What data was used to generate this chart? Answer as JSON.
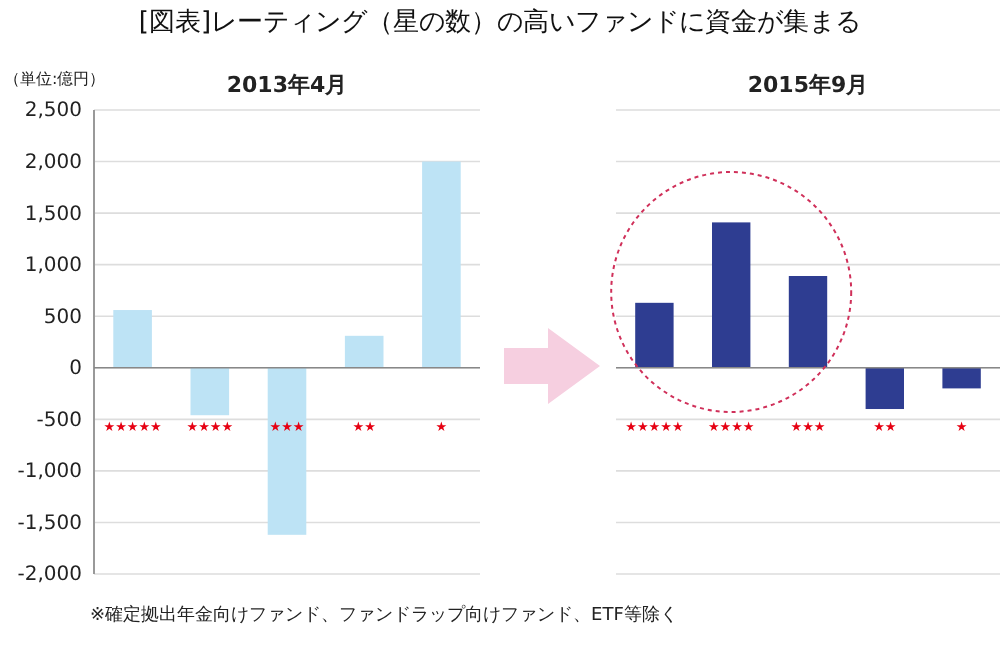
{
  "chart_data": [
    {
      "type": "bar",
      "title": "[図表]レーティング（星の数）の高いファンドに資金が集まる",
      "subtitle": "2013年4月",
      "ylabel": "（単位:億円）",
      "categories": [
        "★★★★★",
        "★★★★",
        "★★★",
        "★★",
        "★"
      ],
      "values": [
        560,
        -460,
        -1620,
        310,
        2000
      ],
      "color": "#bde3f5",
      "ylim": [
        -2000,
        2500
      ],
      "yticks": [
        {
          "value": -2000,
          "label": "-2,000"
        },
        {
          "value": -1500,
          "label": "-1,500"
        },
        {
          "value": -1000,
          "label": "-1,000"
        },
        {
          "value": -500,
          "label": "-500"
        },
        {
          "value": 0,
          "label": "0"
        },
        {
          "value": 500,
          "label": "500"
        },
        {
          "value": 1000,
          "label": "1,000"
        },
        {
          "value": 1500,
          "label": "1,500"
        },
        {
          "value": 2000,
          "label": "2,000"
        },
        {
          "value": 2500,
          "label": "2,500"
        }
      ],
      "grid": "y",
      "annotations": [
        "※確定拠出年金向けファンド、ファンドラップ向けファンド、ETF等除く"
      ]
    },
    {
      "type": "bar",
      "subtitle": "2015年9月",
      "categories": [
        "★★★★★",
        "★★★★",
        "★★★",
        "★★",
        "★"
      ],
      "values": [
        630,
        1410,
        890,
        -400,
        -200
      ],
      "color": "#2e3d91",
      "ylim": [
        -2000,
        2500
      ],
      "yticks": [
        -2000,
        -1500,
        -1000,
        -500,
        0,
        500,
        1000,
        1500,
        2000,
        2500
      ],
      "grid": "y",
      "tick_labels": "x"
    }
  ]
}
